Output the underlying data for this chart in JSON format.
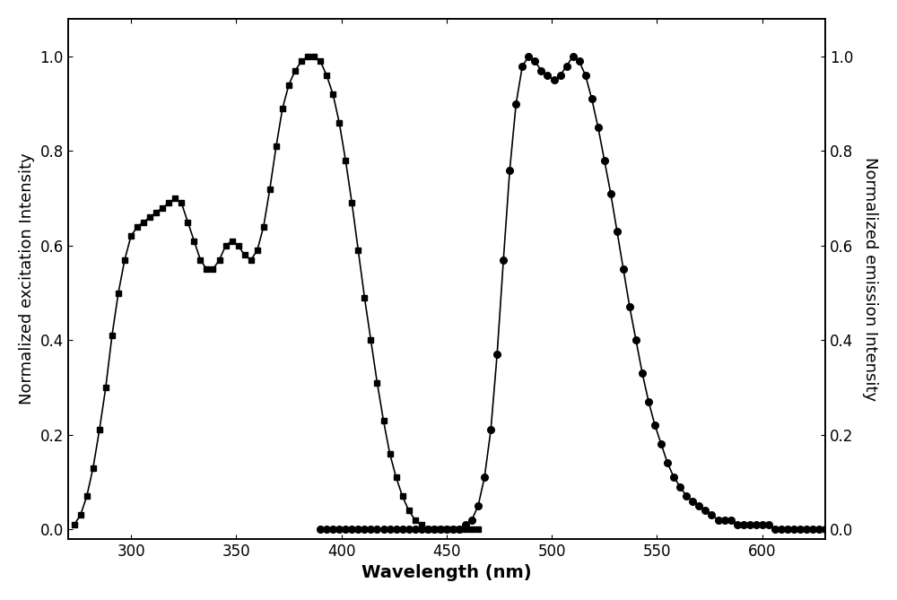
{
  "title": "",
  "xlabel": "Wavelength (nm)",
  "ylabel_left": "Normalized excitation Intensity",
  "ylabel_right": "Normalized emission Intensity",
  "xlim": [
    270,
    630
  ],
  "ylim": [
    -0.02,
    1.08
  ],
  "background_color": "#ffffff",
  "line_color": "#000000",
  "excitation_x": [
    273,
    276,
    279,
    282,
    285,
    288,
    291,
    294,
    297,
    300,
    303,
    306,
    309,
    312,
    315,
    318,
    321,
    324,
    327,
    330,
    333,
    336,
    339,
    342,
    345,
    348,
    351,
    354,
    357,
    360,
    363,
    366,
    369,
    372,
    375,
    378,
    381,
    384,
    387,
    390,
    393,
    396,
    399,
    402,
    405,
    408,
    411,
    414,
    417,
    420,
    423,
    426,
    429,
    432,
    435,
    438,
    441,
    444,
    447,
    450,
    453,
    456,
    459,
    462,
    465
  ],
  "excitation_y": [
    0.01,
    0.03,
    0.07,
    0.13,
    0.21,
    0.3,
    0.41,
    0.5,
    0.57,
    0.62,
    0.64,
    0.65,
    0.66,
    0.67,
    0.68,
    0.69,
    0.7,
    0.69,
    0.65,
    0.61,
    0.57,
    0.55,
    0.55,
    0.57,
    0.6,
    0.61,
    0.6,
    0.58,
    0.57,
    0.59,
    0.64,
    0.72,
    0.81,
    0.89,
    0.94,
    0.97,
    0.99,
    1.0,
    1.0,
    0.99,
    0.96,
    0.92,
    0.86,
    0.78,
    0.69,
    0.59,
    0.49,
    0.4,
    0.31,
    0.23,
    0.16,
    0.11,
    0.07,
    0.04,
    0.02,
    0.01,
    0.0,
    0.0,
    0.0,
    0.0,
    0.0,
    0.0,
    0.0,
    0.0,
    0.0
  ],
  "emission_x": [
    390,
    393,
    396,
    399,
    402,
    405,
    408,
    411,
    414,
    417,
    420,
    423,
    426,
    429,
    432,
    435,
    438,
    441,
    444,
    447,
    450,
    453,
    456,
    459,
    462,
    465,
    468,
    471,
    474,
    477,
    480,
    483,
    486,
    489,
    492,
    495,
    498,
    501,
    504,
    507,
    510,
    513,
    516,
    519,
    522,
    525,
    528,
    531,
    534,
    537,
    540,
    543,
    546,
    549,
    552,
    555,
    558,
    561,
    564,
    567,
    570,
    573,
    576,
    579,
    582,
    585,
    588,
    591,
    594,
    597,
    600,
    603,
    606,
    609,
    612,
    615,
    618,
    621,
    624,
    627,
    630
  ],
  "emission_y": [
    0.0,
    0.0,
    0.0,
    0.0,
    0.0,
    0.0,
    0.0,
    0.0,
    0.0,
    0.0,
    0.0,
    0.0,
    0.0,
    0.0,
    0.0,
    0.0,
    0.0,
    0.0,
    0.0,
    0.0,
    0.0,
    0.0,
    0.0,
    0.01,
    0.02,
    0.05,
    0.11,
    0.21,
    0.37,
    0.57,
    0.76,
    0.9,
    0.98,
    1.0,
    0.99,
    0.97,
    0.96,
    0.95,
    0.96,
    0.98,
    1.0,
    0.99,
    0.96,
    0.91,
    0.85,
    0.78,
    0.71,
    0.63,
    0.55,
    0.47,
    0.4,
    0.33,
    0.27,
    0.22,
    0.18,
    0.14,
    0.11,
    0.09,
    0.07,
    0.06,
    0.05,
    0.04,
    0.03,
    0.02,
    0.02,
    0.02,
    0.01,
    0.01,
    0.01,
    0.01,
    0.01,
    0.01,
    0.0,
    0.0,
    0.0,
    0.0,
    0.0,
    0.0,
    0.0,
    0.0,
    0.0
  ],
  "marker_size_square": 4.5,
  "marker_size_circle": 5.5,
  "linewidth": 1.2,
  "xlabel_fontsize": 14,
  "ylabel_fontsize": 13,
  "tick_fontsize": 12,
  "xticks": [
    300,
    350,
    400,
    450,
    500,
    550,
    600
  ],
  "yticks": [
    0.0,
    0.2,
    0.4,
    0.6,
    0.8,
    1.0
  ]
}
